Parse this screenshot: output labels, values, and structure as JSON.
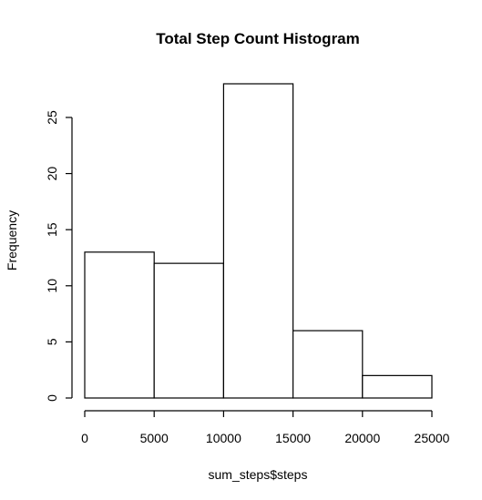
{
  "chart_data": {
    "type": "bar",
    "title": "Total Step Count Histogram",
    "xlabel": "sum_steps$steps",
    "ylabel": "Frequency",
    "bins": [
      {
        "from": 0,
        "to": 5000,
        "count": 13
      },
      {
        "from": 5000,
        "to": 10000,
        "count": 12
      },
      {
        "from": 10000,
        "to": 15000,
        "count": 28
      },
      {
        "from": 15000,
        "to": 20000,
        "count": 6
      },
      {
        "from": 20000,
        "to": 25000,
        "count": 2
      }
    ],
    "xlim": [
      0,
      25000
    ],
    "ylim": [
      0,
      28
    ],
    "x_ticks": [
      0,
      5000,
      10000,
      15000,
      20000,
      25000
    ],
    "x_tick_labels": [
      "0",
      "5000",
      "10000",
      "15000",
      "20000",
      "25000"
    ],
    "y_ticks": [
      0,
      5,
      10,
      15,
      20,
      25
    ],
    "y_tick_labels": [
      "0",
      "5",
      "10",
      "15",
      "20",
      "25"
    ],
    "grid": false,
    "colors": {
      "bar_fill": "#ffffff",
      "bar_stroke": "#000000"
    }
  }
}
